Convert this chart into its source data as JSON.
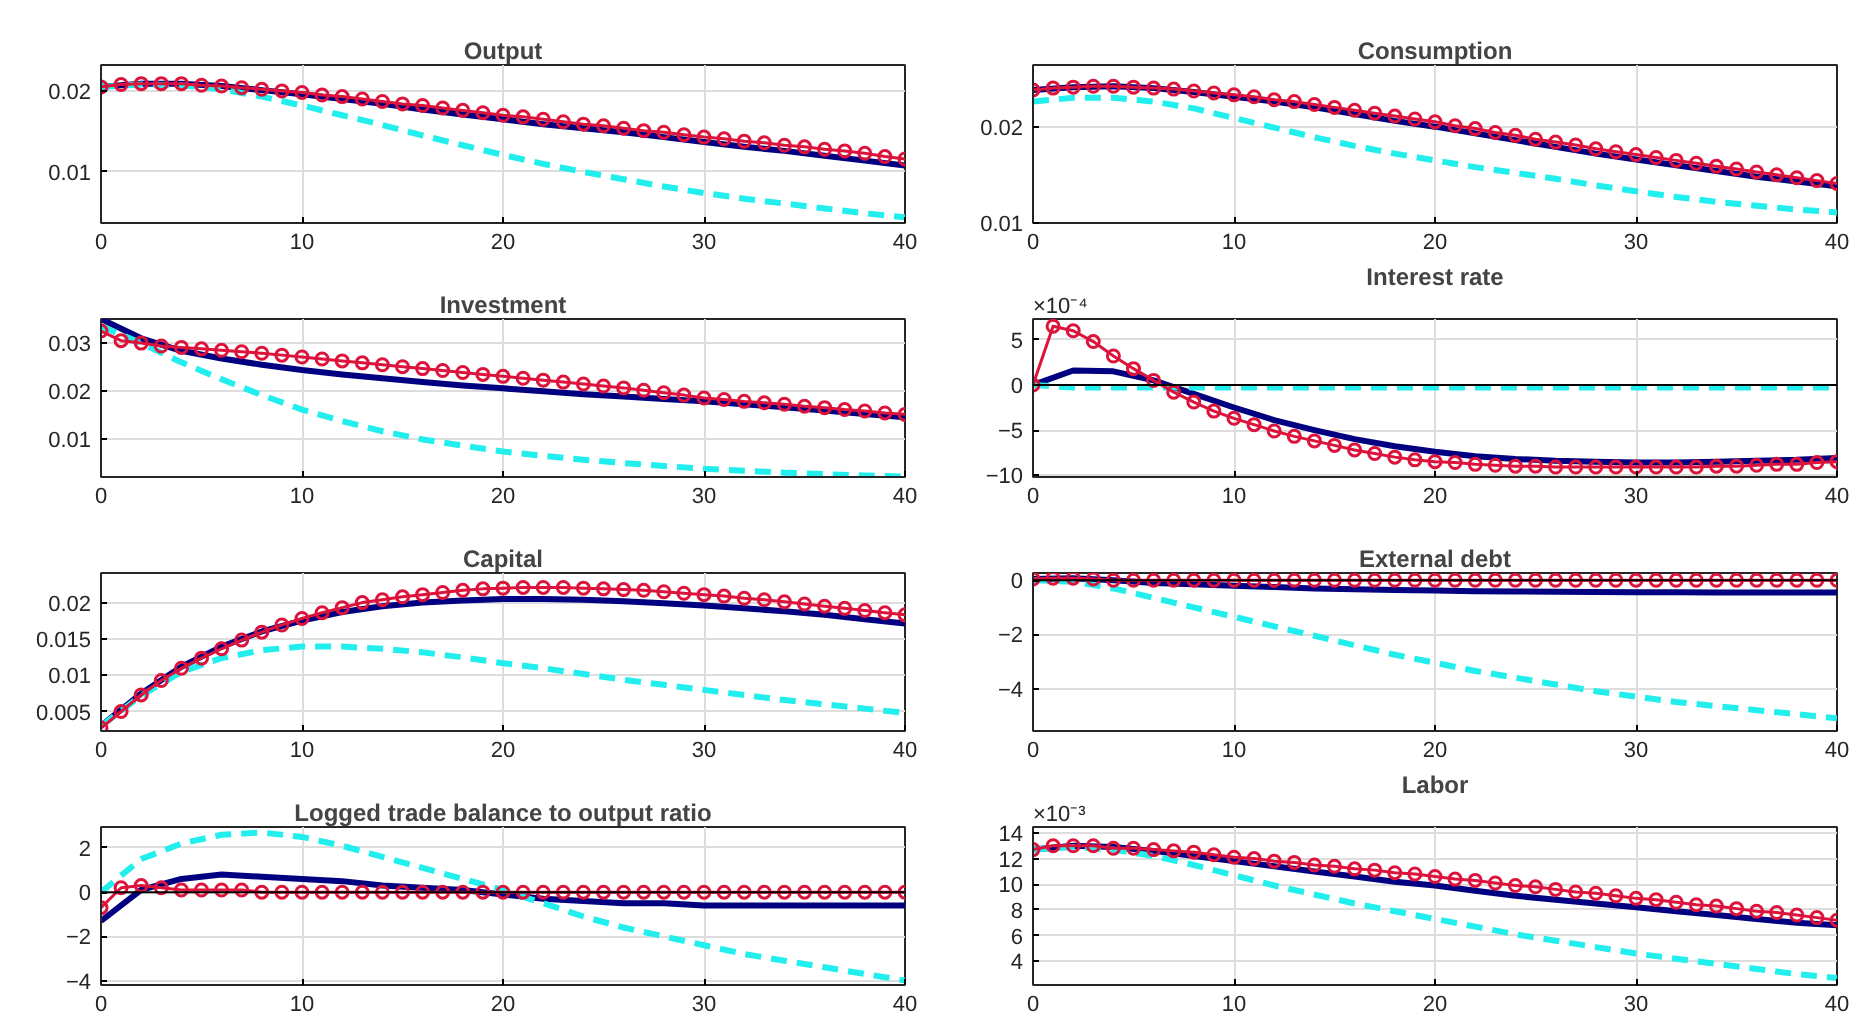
{
  "chart_data": [
    {
      "type": "line",
      "title": "Output",
      "x": [
        0,
        1,
        2,
        3,
        4,
        5,
        6,
        7,
        8,
        9,
        10,
        11,
        12,
        13,
        14,
        15,
        16,
        17,
        18,
        19,
        20,
        21,
        22,
        23,
        24,
        25,
        26,
        27,
        28,
        29,
        30,
        31,
        32,
        33,
        34,
        35,
        36,
        37,
        38,
        39,
        40
      ],
      "xlim": [
        0,
        40
      ],
      "xticks": [
        0,
        10,
        20,
        30,
        40
      ],
      "ylim": [
        0.0037,
        0.0232
      ],
      "yticks": [
        0.01,
        0.02
      ],
      "grid": true,
      "series": [
        {
          "color": "#000080",
          "x": [
            0,
            2,
            4,
            6,
            8,
            10,
            12,
            14,
            16,
            18,
            20,
            22,
            24,
            26,
            28,
            30,
            32,
            34,
            36,
            38,
            40
          ],
          "values": [
            0.0205,
            0.0209,
            0.0209,
            0.0206,
            0.0201,
            0.0196,
            0.019,
            0.0184,
            0.0177,
            0.0171,
            0.0165,
            0.0159,
            0.0154,
            0.0149,
            0.0143,
            0.0137,
            0.0131,
            0.0126,
            0.012,
            0.0114,
            0.0108
          ]
        },
        {
          "color": "#22eeee",
          "line_style": "dashed",
          "x": [
            0,
            2,
            4,
            6,
            8,
            10,
            12,
            14,
            16,
            18,
            20,
            22,
            24,
            26,
            28,
            30,
            32,
            34,
            36,
            38,
            40
          ],
          "values": [
            0.0205,
            0.0208,
            0.0207,
            0.0202,
            0.0193,
            0.0182,
            0.017,
            0.0158,
            0.0145,
            0.0133,
            0.0121,
            0.011,
            0.01,
            0.0091,
            0.0082,
            0.0074,
            0.0067,
            0.0061,
            0.0055,
            0.0049,
            0.0044
          ]
        },
        {
          "color": "#dc143c",
          "marker": "circle",
          "values": [
            0.0205,
            0.0208,
            0.0209,
            0.0209,
            0.0209,
            0.0207,
            0.0206,
            0.0204,
            0.0202,
            0.02,
            0.0198,
            0.0195,
            0.0193,
            0.019,
            0.0187,
            0.0184,
            0.0182,
            0.0179,
            0.0176,
            0.0173,
            0.017,
            0.0168,
            0.0165,
            0.0162,
            0.0159,
            0.0157,
            0.0154,
            0.0151,
            0.0149,
            0.0146,
            0.0143,
            0.0141,
            0.0138,
            0.0136,
            0.0133,
            0.0131,
            0.0128,
            0.0126,
            0.0123,
            0.0119,
            0.0116
          ]
        }
      ]
    },
    {
      "type": "line",
      "title": "Consumption",
      "x": [
        0,
        1,
        2,
        3,
        4,
        5,
        6,
        7,
        8,
        9,
        10,
        11,
        12,
        13,
        14,
        15,
        16,
        17,
        18,
        19,
        20,
        21,
        22,
        23,
        24,
        25,
        26,
        27,
        28,
        29,
        30,
        31,
        32,
        33,
        34,
        35,
        36,
        37,
        38,
        39,
        40
      ],
      "xlim": [
        0,
        40
      ],
      "xticks": [
        0,
        10,
        20,
        30,
        40
      ],
      "ylim": [
        0.01,
        0.0264
      ],
      "yticks": [
        0.01,
        0.02
      ],
      "grid": true,
      "series": [
        {
          "color": "#000080",
          "x": [
            0,
            2,
            4,
            6,
            8,
            10,
            12,
            14,
            16,
            18,
            20,
            22,
            24,
            26,
            28,
            30,
            32,
            34,
            36,
            38,
            40
          ],
          "values": [
            0.0238,
            0.0241,
            0.0242,
            0.024,
            0.0236,
            0.0231,
            0.0226,
            0.022,
            0.0213,
            0.0206,
            0.02,
            0.0193,
            0.0186,
            0.0179,
            0.0172,
            0.0166,
            0.016,
            0.0154,
            0.0148,
            0.0143,
            0.0138
          ]
        },
        {
          "color": "#22eeee",
          "line_style": "dashed",
          "x": [
            0,
            2,
            4,
            6,
            8,
            10,
            12,
            14,
            16,
            18,
            20,
            22,
            24,
            26,
            28,
            30,
            32,
            34,
            36,
            38,
            40
          ],
          "values": [
            0.0226,
            0.023,
            0.023,
            0.0226,
            0.0219,
            0.0209,
            0.0199,
            0.0189,
            0.018,
            0.0172,
            0.0165,
            0.0158,
            0.0152,
            0.0146,
            0.0139,
            0.0133,
            0.0127,
            0.0122,
            0.0118,
            0.0114,
            0.0111
          ]
        },
        {
          "color": "#dc143c",
          "marker": "circle",
          "values": [
            0.0238,
            0.024,
            0.0241,
            0.0242,
            0.0242,
            0.0241,
            0.024,
            0.0239,
            0.0237,
            0.0235,
            0.0233,
            0.0231,
            0.0228,
            0.0226,
            0.0223,
            0.022,
            0.0217,
            0.0214,
            0.0211,
            0.0208,
            0.0205,
            0.0201,
            0.0198,
            0.0194,
            0.0191,
            0.0187,
            0.0184,
            0.0181,
            0.0177,
            0.0174,
            0.0171,
            0.0168,
            0.0165,
            0.0162,
            0.0159,
            0.0156,
            0.0153,
            0.015,
            0.0147,
            0.0144,
            0.0141
          ]
        }
      ]
    },
    {
      "type": "line",
      "title": "Investment",
      "x": [
        0,
        1,
        2,
        3,
        4,
        5,
        6,
        7,
        8,
        9,
        10,
        11,
        12,
        13,
        14,
        15,
        16,
        17,
        18,
        19,
        20,
        21,
        22,
        23,
        24,
        25,
        26,
        27,
        28,
        29,
        30,
        31,
        32,
        33,
        34,
        35,
        36,
        37,
        38,
        39,
        40
      ],
      "xlim": [
        0,
        40
      ],
      "xticks": [
        0,
        10,
        20,
        30,
        40
      ],
      "ylim": [
        0.0022,
        0.035
      ],
      "yticks": [
        0.01,
        0.02,
        0.03
      ],
      "grid": true,
      "series": [
        {
          "color": "#000080",
          "x": [
            0,
            2,
            4,
            6,
            8,
            10,
            12,
            14,
            16,
            18,
            20,
            22,
            24,
            26,
            28,
            30,
            32,
            34,
            36,
            38,
            40
          ],
          "values": [
            0.035,
            0.031,
            0.0284,
            0.0268,
            0.0255,
            0.0244,
            0.0235,
            0.0227,
            0.0219,
            0.0212,
            0.0206,
            0.02,
            0.0194,
            0.0189,
            0.0184,
            0.0179,
            0.0173,
            0.0167,
            0.016,
            0.0153,
            0.0146
          ]
        },
        {
          "color": "#22eeee",
          "line_style": "dashed",
          "x": [
            0,
            2,
            4,
            6,
            8,
            10,
            12,
            14,
            16,
            18,
            20,
            22,
            24,
            26,
            28,
            30,
            32,
            34,
            36,
            38,
            40
          ],
          "values": [
            0.0335,
            0.03,
            0.026,
            0.0225,
            0.0192,
            0.0162,
            0.0138,
            0.0117,
            0.01,
            0.0087,
            0.0075,
            0.0066,
            0.0058,
            0.0051,
            0.0045,
            0.0039,
            0.0035,
            0.0031,
            0.0028,
            0.0025,
            0.0023
          ]
        },
        {
          "color": "#dc143c",
          "marker": "circle",
          "values": [
            0.0325,
            0.0305,
            0.03,
            0.0294,
            0.0291,
            0.0288,
            0.0285,
            0.0282,
            0.0279,
            0.0275,
            0.0271,
            0.0267,
            0.0263,
            0.0259,
            0.0255,
            0.0251,
            0.0247,
            0.0243,
            0.0239,
            0.0235,
            0.0231,
            0.0227,
            0.0223,
            0.0219,
            0.0215,
            0.0211,
            0.0207,
            0.0202,
            0.0197,
            0.0192,
            0.0186,
            0.0183,
            0.0179,
            0.0176,
            0.0173,
            0.0169,
            0.0166,
            0.0162,
            0.0159,
            0.0155,
            0.0152
          ]
        }
      ]
    },
    {
      "type": "line",
      "title": "Interest rate",
      "annotations": [
        "×10⁻⁴"
      ],
      "x": [
        0,
        1,
        2,
        3,
        4,
        5,
        6,
        7,
        8,
        9,
        10,
        11,
        12,
        13,
        14,
        15,
        16,
        17,
        18,
        19,
        20,
        21,
        22,
        23,
        24,
        25,
        26,
        27,
        28,
        29,
        30,
        31,
        32,
        33,
        34,
        35,
        36,
        37,
        38,
        39,
        40
      ],
      "xlim": [
        0,
        40
      ],
      "xticks": [
        0,
        10,
        20,
        30,
        40
      ],
      "ylim": [
        -10.2,
        7.3
      ],
      "yticks": [
        -10,
        -5,
        0,
        5
      ],
      "grid": true,
      "ref_lines": [
        {
          "axis": "y",
          "value": 0,
          "color": "#000000"
        }
      ],
      "series": [
        {
          "color": "#000080",
          "x": [
            0,
            2,
            4,
            6,
            8,
            10,
            12,
            14,
            16,
            18,
            20,
            22,
            24,
            26,
            28,
            30,
            32,
            34,
            36,
            38,
            40
          ],
          "values": [
            0,
            1.6,
            1.5,
            0.5,
            -1.0,
            -2.5,
            -3.9,
            -5.0,
            -6.0,
            -6.8,
            -7.4,
            -7.9,
            -8.2,
            -8.4,
            -8.5,
            -8.6,
            -8.6,
            -8.5,
            -8.4,
            -8.3,
            -8.1
          ]
        },
        {
          "color": "#22eeee",
          "line_style": "dashed",
          "x": [
            0,
            2,
            4,
            6,
            8,
            10,
            12,
            14,
            16,
            18,
            20,
            22,
            24,
            26,
            28,
            30,
            32,
            34,
            36,
            38,
            40
          ],
          "values": [
            0,
            -0.3,
            -0.3,
            -0.3,
            -0.3,
            -0.3,
            -0.3,
            -0.3,
            -0.3,
            -0.3,
            -0.3,
            -0.3,
            -0.3,
            -0.3,
            -0.3,
            -0.3,
            -0.3,
            -0.3,
            -0.3,
            -0.3,
            -0.3
          ]
        },
        {
          "color": "#dc143c",
          "marker": "circle",
          "values": [
            0,
            6.5,
            6.0,
            4.8,
            3.2,
            1.8,
            0.5,
            -0.8,
            -1.9,
            -2.9,
            -3.7,
            -4.4,
            -5.1,
            -5.7,
            -6.2,
            -6.7,
            -7.2,
            -7.6,
            -8.0,
            -8.3,
            -8.5,
            -8.6,
            -8.8,
            -8.9,
            -9.0,
            -9.0,
            -9.1,
            -9.1,
            -9.1,
            -9.1,
            -9.1,
            -9.1,
            -9.1,
            -9.1,
            -9.0,
            -9.0,
            -8.9,
            -8.8,
            -8.8,
            -8.6,
            -8.5
          ]
        }
      ]
    },
    {
      "type": "line",
      "title": "Capital",
      "x": [
        0,
        1,
        2,
        3,
        4,
        5,
        6,
        7,
        8,
        9,
        10,
        11,
        12,
        13,
        14,
        15,
        16,
        17,
        18,
        19,
        20,
        21,
        22,
        23,
        24,
        25,
        26,
        27,
        28,
        29,
        30,
        31,
        32,
        33,
        34,
        35,
        36,
        37,
        38,
        39,
        40
      ],
      "xlim": [
        0,
        40
      ],
      "xticks": [
        0,
        10,
        20,
        30,
        40
      ],
      "ylim": [
        0.0023,
        0.0242
      ],
      "yticks": [
        0.005,
        0.01,
        0.015,
        0.02
      ],
      "grid": true,
      "series": [
        {
          "color": "#000080",
          "x": [
            0,
            2,
            4,
            6,
            8,
            10,
            12,
            14,
            16,
            18,
            20,
            22,
            24,
            26,
            28,
            30,
            32,
            34,
            36,
            38,
            40
          ],
          "values": [
            0.003,
            0.0075,
            0.0112,
            0.014,
            0.0161,
            0.0176,
            0.0188,
            0.0196,
            0.0201,
            0.0204,
            0.0206,
            0.0206,
            0.0205,
            0.0203,
            0.02,
            0.0197,
            0.0193,
            0.0189,
            0.0184,
            0.0178,
            0.0172
          ]
        },
        {
          "color": "#22eeee",
          "line_style": "dashed",
          "x": [
            0,
            2,
            4,
            6,
            8,
            10,
            12,
            14,
            16,
            18,
            20,
            22,
            24,
            26,
            28,
            30,
            32,
            34,
            36,
            38,
            40
          ],
          "values": [
            0.003,
            0.0072,
            0.0105,
            0.0124,
            0.0135,
            0.014,
            0.014,
            0.0137,
            0.0132,
            0.0125,
            0.0117,
            0.011,
            0.0102,
            0.0094,
            0.0087,
            0.008,
            0.0073,
            0.0066,
            0.006,
            0.0054,
            0.0048
          ]
        },
        {
          "color": "#dc143c",
          "marker": "circle",
          "values": [
            0.0027,
            0.005,
            0.0073,
            0.0093,
            0.011,
            0.0124,
            0.0137,
            0.0149,
            0.016,
            0.017,
            0.0179,
            0.0187,
            0.0194,
            0.0201,
            0.0205,
            0.0209,
            0.0212,
            0.0215,
            0.0218,
            0.022,
            0.0221,
            0.0222,
            0.0222,
            0.0222,
            0.0221,
            0.022,
            0.0219,
            0.0218,
            0.0216,
            0.0214,
            0.0212,
            0.021,
            0.0207,
            0.0205,
            0.0202,
            0.0199,
            0.0196,
            0.0193,
            0.019,
            0.0187,
            0.0184
          ]
        }
      ]
    },
    {
      "type": "line",
      "title": "External debt",
      "x": [
        0,
        1,
        2,
        3,
        4,
        5,
        6,
        7,
        8,
        9,
        10,
        11,
        12,
        13,
        14,
        15,
        16,
        17,
        18,
        19,
        20,
        21,
        22,
        23,
        24,
        25,
        26,
        27,
        28,
        29,
        30,
        31,
        32,
        33,
        34,
        35,
        36,
        37,
        38,
        39,
        40
      ],
      "xlim": [
        0,
        40
      ],
      "xticks": [
        0,
        10,
        20,
        30,
        40
      ],
      "ylim": [
        -5.57,
        0.27
      ],
      "yticks": [
        -4,
        -2,
        0
      ],
      "grid": true,
      "ref_lines": [
        {
          "axis": "y",
          "value": 0,
          "color": "#000000"
        }
      ],
      "series": [
        {
          "color": "#000080",
          "x": [
            0,
            2,
            4,
            6,
            8,
            10,
            12,
            14,
            16,
            18,
            20,
            22,
            24,
            26,
            28,
            30,
            32,
            34,
            36,
            38,
            40
          ],
          "values": [
            0.05,
            0.08,
            0.0,
            -0.1,
            -0.15,
            -0.2,
            -0.25,
            -0.3,
            -0.33,
            -0.36,
            -0.38,
            -0.4,
            -0.41,
            -0.42,
            -0.43,
            -0.44,
            -0.44,
            -0.45,
            -0.45,
            -0.45,
            -0.45
          ]
        },
        {
          "color": "#22eeee",
          "line_style": "dashed",
          "x": [
            0,
            2,
            4,
            6,
            8,
            10,
            12,
            14,
            16,
            18,
            20,
            22,
            24,
            26,
            28,
            30,
            32,
            34,
            36,
            38,
            40
          ],
          "values": [
            0.0,
            -0.05,
            -0.3,
            -0.65,
            -1.0,
            -1.35,
            -1.7,
            -2.05,
            -2.4,
            -2.75,
            -3.05,
            -3.35,
            -3.6,
            -3.85,
            -4.1,
            -4.3,
            -4.5,
            -4.65,
            -4.8,
            -4.95,
            -5.1
          ]
        },
        {
          "color": "#dc143c",
          "marker": "circle",
          "values": [
            0.05,
            0.08,
            0.08,
            0.05,
            0,
            0,
            0,
            0,
            0,
            0,
            0,
            0,
            0,
            0,
            0,
            0,
            0,
            0,
            0,
            0,
            0,
            0,
            0,
            0,
            0,
            0,
            0,
            0,
            0,
            0,
            0,
            0,
            0,
            0,
            0,
            0,
            0,
            0,
            0,
            0,
            0
          ]
        }
      ]
    },
    {
      "type": "line",
      "title": "Logged trade balance to output ratio",
      "x": [
        0,
        1,
        2,
        3,
        4,
        5,
        6,
        7,
        8,
        9,
        10,
        11,
        12,
        13,
        14,
        15,
        16,
        17,
        18,
        19,
        20,
        21,
        22,
        23,
        24,
        25,
        26,
        27,
        28,
        29,
        30,
        31,
        32,
        33,
        34,
        35,
        36,
        37,
        38,
        39,
        40
      ],
      "xlim": [
        0,
        40
      ],
      "xticks": [
        0,
        10,
        20,
        30,
        40
      ],
      "ylim": [
        -4.2,
        2.95
      ],
      "yticks": [
        -4,
        -2,
        0,
        2
      ],
      "grid": true,
      "ref_lines": [
        {
          "axis": "y",
          "value": 0,
          "color": "#000000"
        }
      ],
      "series": [
        {
          "color": "#000080",
          "x": [
            0,
            2,
            4,
            6,
            8,
            10,
            12,
            14,
            16,
            18,
            20,
            22,
            24,
            26,
            28,
            30,
            32,
            34,
            36,
            38,
            40
          ],
          "values": [
            -1.3,
            0.1,
            0.6,
            0.8,
            0.7,
            0.6,
            0.5,
            0.3,
            0.2,
            0.1,
            -0.1,
            -0.3,
            -0.4,
            -0.5,
            -0.5,
            -0.6,
            -0.6,
            -0.6,
            -0.6,
            -0.6,
            -0.6
          ]
        },
        {
          "color": "#22eeee",
          "line_style": "dashed",
          "x": [
            0,
            2,
            4,
            6,
            8,
            10,
            12,
            14,
            16,
            18,
            20,
            22,
            24,
            26,
            28,
            30,
            32,
            34,
            36,
            38,
            40
          ],
          "values": [
            0,
            1.5,
            2.2,
            2.6,
            2.7,
            2.5,
            2.1,
            1.6,
            1.1,
            0.6,
            0.1,
            -0.5,
            -1.1,
            -1.6,
            -2.0,
            -2.4,
            -2.8,
            -3.1,
            -3.4,
            -3.7,
            -4.0
          ]
        },
        {
          "color": "#dc143c",
          "marker": "circle",
          "values": [
            -0.7,
            0.2,
            0.3,
            0.2,
            0.1,
            0.1,
            0.1,
            0.1,
            0,
            0,
            0,
            0,
            0,
            0,
            0,
            0,
            0,
            0,
            0,
            0,
            0,
            0,
            0,
            0,
            0,
            0,
            0,
            0,
            0,
            0,
            0,
            0,
            0,
            0,
            0,
            0,
            0,
            0,
            0,
            0,
            0
          ]
        }
      ]
    },
    {
      "type": "line",
      "title": "Labor",
      "annotations": [
        "×10⁻³"
      ],
      "x": [
        0,
        1,
        2,
        3,
        4,
        5,
        6,
        7,
        8,
        9,
        10,
        11,
        12,
        13,
        14,
        15,
        16,
        17,
        18,
        19,
        20,
        21,
        22,
        23,
        24,
        25,
        26,
        27,
        28,
        29,
        30,
        31,
        32,
        33,
        34,
        35,
        36,
        37,
        38,
        39,
        40
      ],
      "xlim": [
        0,
        40
      ],
      "xticks": [
        0,
        10,
        20,
        30,
        40
      ],
      "ylim": [
        2.15,
        14.46
      ],
      "yticks": [
        4,
        6,
        8,
        10,
        12,
        14
      ],
      "grid": true,
      "series": [
        {
          "color": "#000080",
          "x": [
            0,
            2,
            4,
            6,
            8,
            10,
            12,
            14,
            16,
            18,
            20,
            22,
            24,
            26,
            28,
            30,
            32,
            34,
            36,
            38,
            40
          ],
          "values": [
            12.7,
            13.0,
            12.9,
            12.6,
            12.2,
            11.8,
            11.4,
            11.0,
            10.6,
            10.2,
            9.9,
            9.5,
            9.1,
            8.8,
            8.5,
            8.2,
            7.9,
            7.6,
            7.3,
            7.0,
            6.8
          ]
        },
        {
          "color": "#22eeee",
          "line_style": "dashed",
          "x": [
            0,
            2,
            4,
            6,
            8,
            10,
            12,
            14,
            16,
            18,
            20,
            22,
            24,
            26,
            28,
            30,
            32,
            34,
            36,
            38,
            40
          ],
          "values": [
            12.7,
            12.9,
            12.7,
            12.2,
            11.5,
            10.7,
            9.9,
            9.2,
            8.5,
            7.9,
            7.3,
            6.7,
            6.1,
            5.6,
            5.1,
            4.6,
            4.2,
            3.8,
            3.4,
            3.0,
            2.7
          ]
        },
        {
          "color": "#dc143c",
          "marker": "circle",
          "values": [
            12.7,
            13.0,
            13.0,
            13.0,
            12.8,
            12.8,
            12.7,
            12.6,
            12.5,
            12.3,
            12.1,
            12.0,
            11.8,
            11.7,
            11.5,
            11.4,
            11.2,
            11.1,
            10.9,
            10.8,
            10.6,
            10.4,
            10.3,
            10.1,
            9.9,
            9.8,
            9.6,
            9.4,
            9.3,
            9.1,
            8.9,
            8.8,
            8.6,
            8.4,
            8.3,
            8.1,
            7.9,
            7.8,
            7.6,
            7.4,
            7.2
          ]
        }
      ]
    }
  ]
}
